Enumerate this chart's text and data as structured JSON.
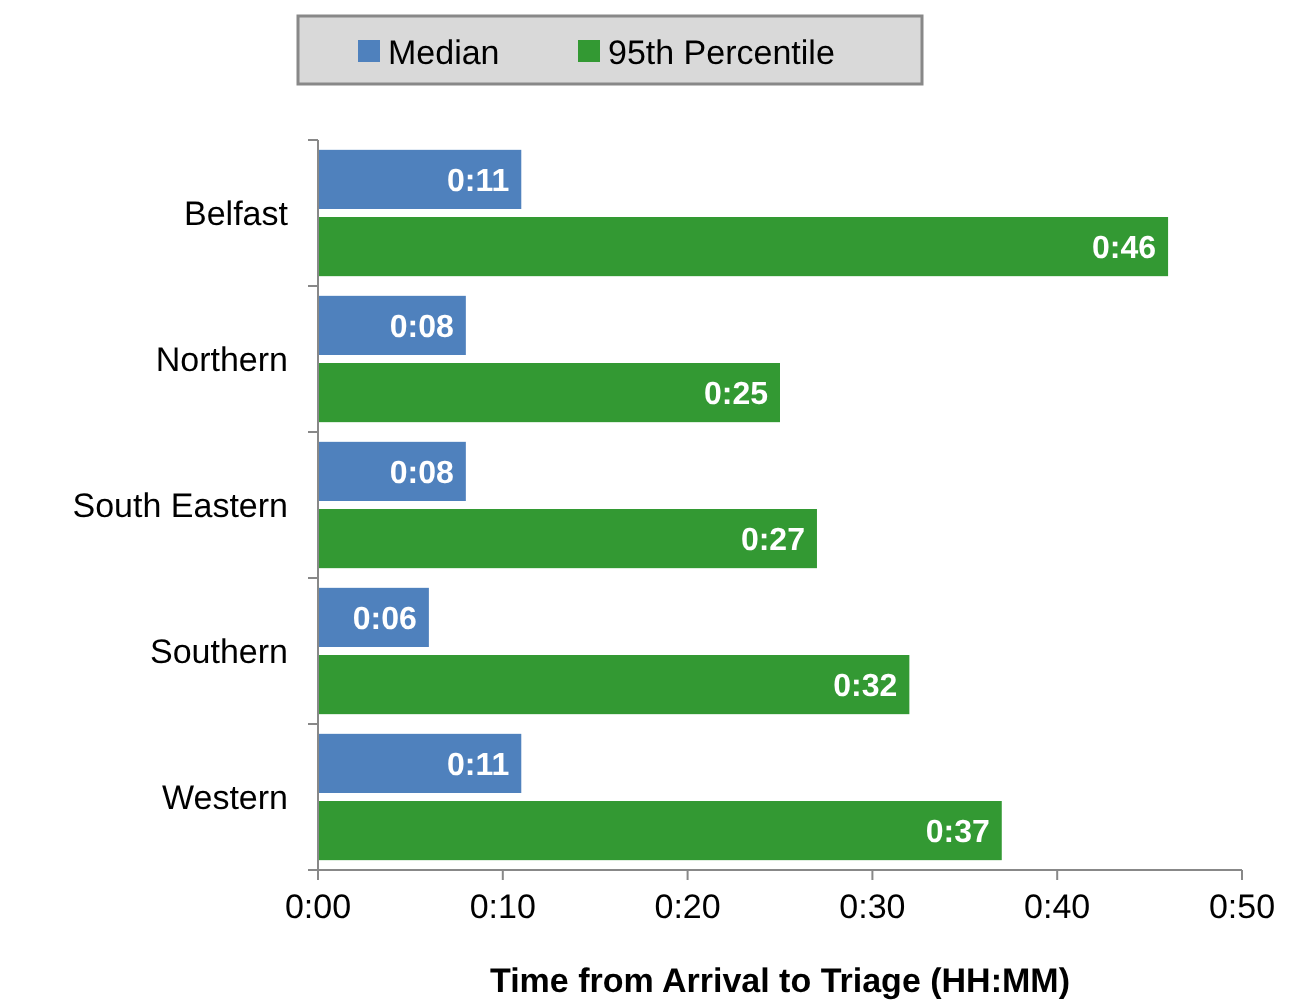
{
  "chart_data": {
    "type": "bar",
    "orientation": "horizontal",
    "xlabel": "Time from Arrival to Triage (HH:MM)",
    "categories": [
      "Belfast",
      "Northern",
      "South Eastern",
      "Southern",
      "Western"
    ],
    "series": [
      {
        "name": "Median",
        "color": "#4f81bd",
        "values": [
          11,
          8,
          8,
          6,
          11
        ],
        "value_labels": [
          "0:11",
          "0:08",
          "0:08",
          "0:06",
          "0:11"
        ]
      },
      {
        "name": "95th Percentile",
        "color": "#339933",
        "values": [
          46,
          25,
          27,
          32,
          37
        ],
        "value_labels": [
          "0:46",
          "0:25",
          "0:27",
          "0:32",
          "0:37"
        ]
      }
    ],
    "xlim": [
      0,
      50
    ],
    "xticks": [
      {
        "value": 0,
        "label": "0:00"
      },
      {
        "value": 10,
        "label": "0:10"
      },
      {
        "value": 20,
        "label": "0:20"
      },
      {
        "value": 30,
        "label": "0:30"
      },
      {
        "value": 40,
        "label": "0:40"
      },
      {
        "value": 50,
        "label": "0:50"
      }
    ],
    "grid": false,
    "legend": "top"
  }
}
